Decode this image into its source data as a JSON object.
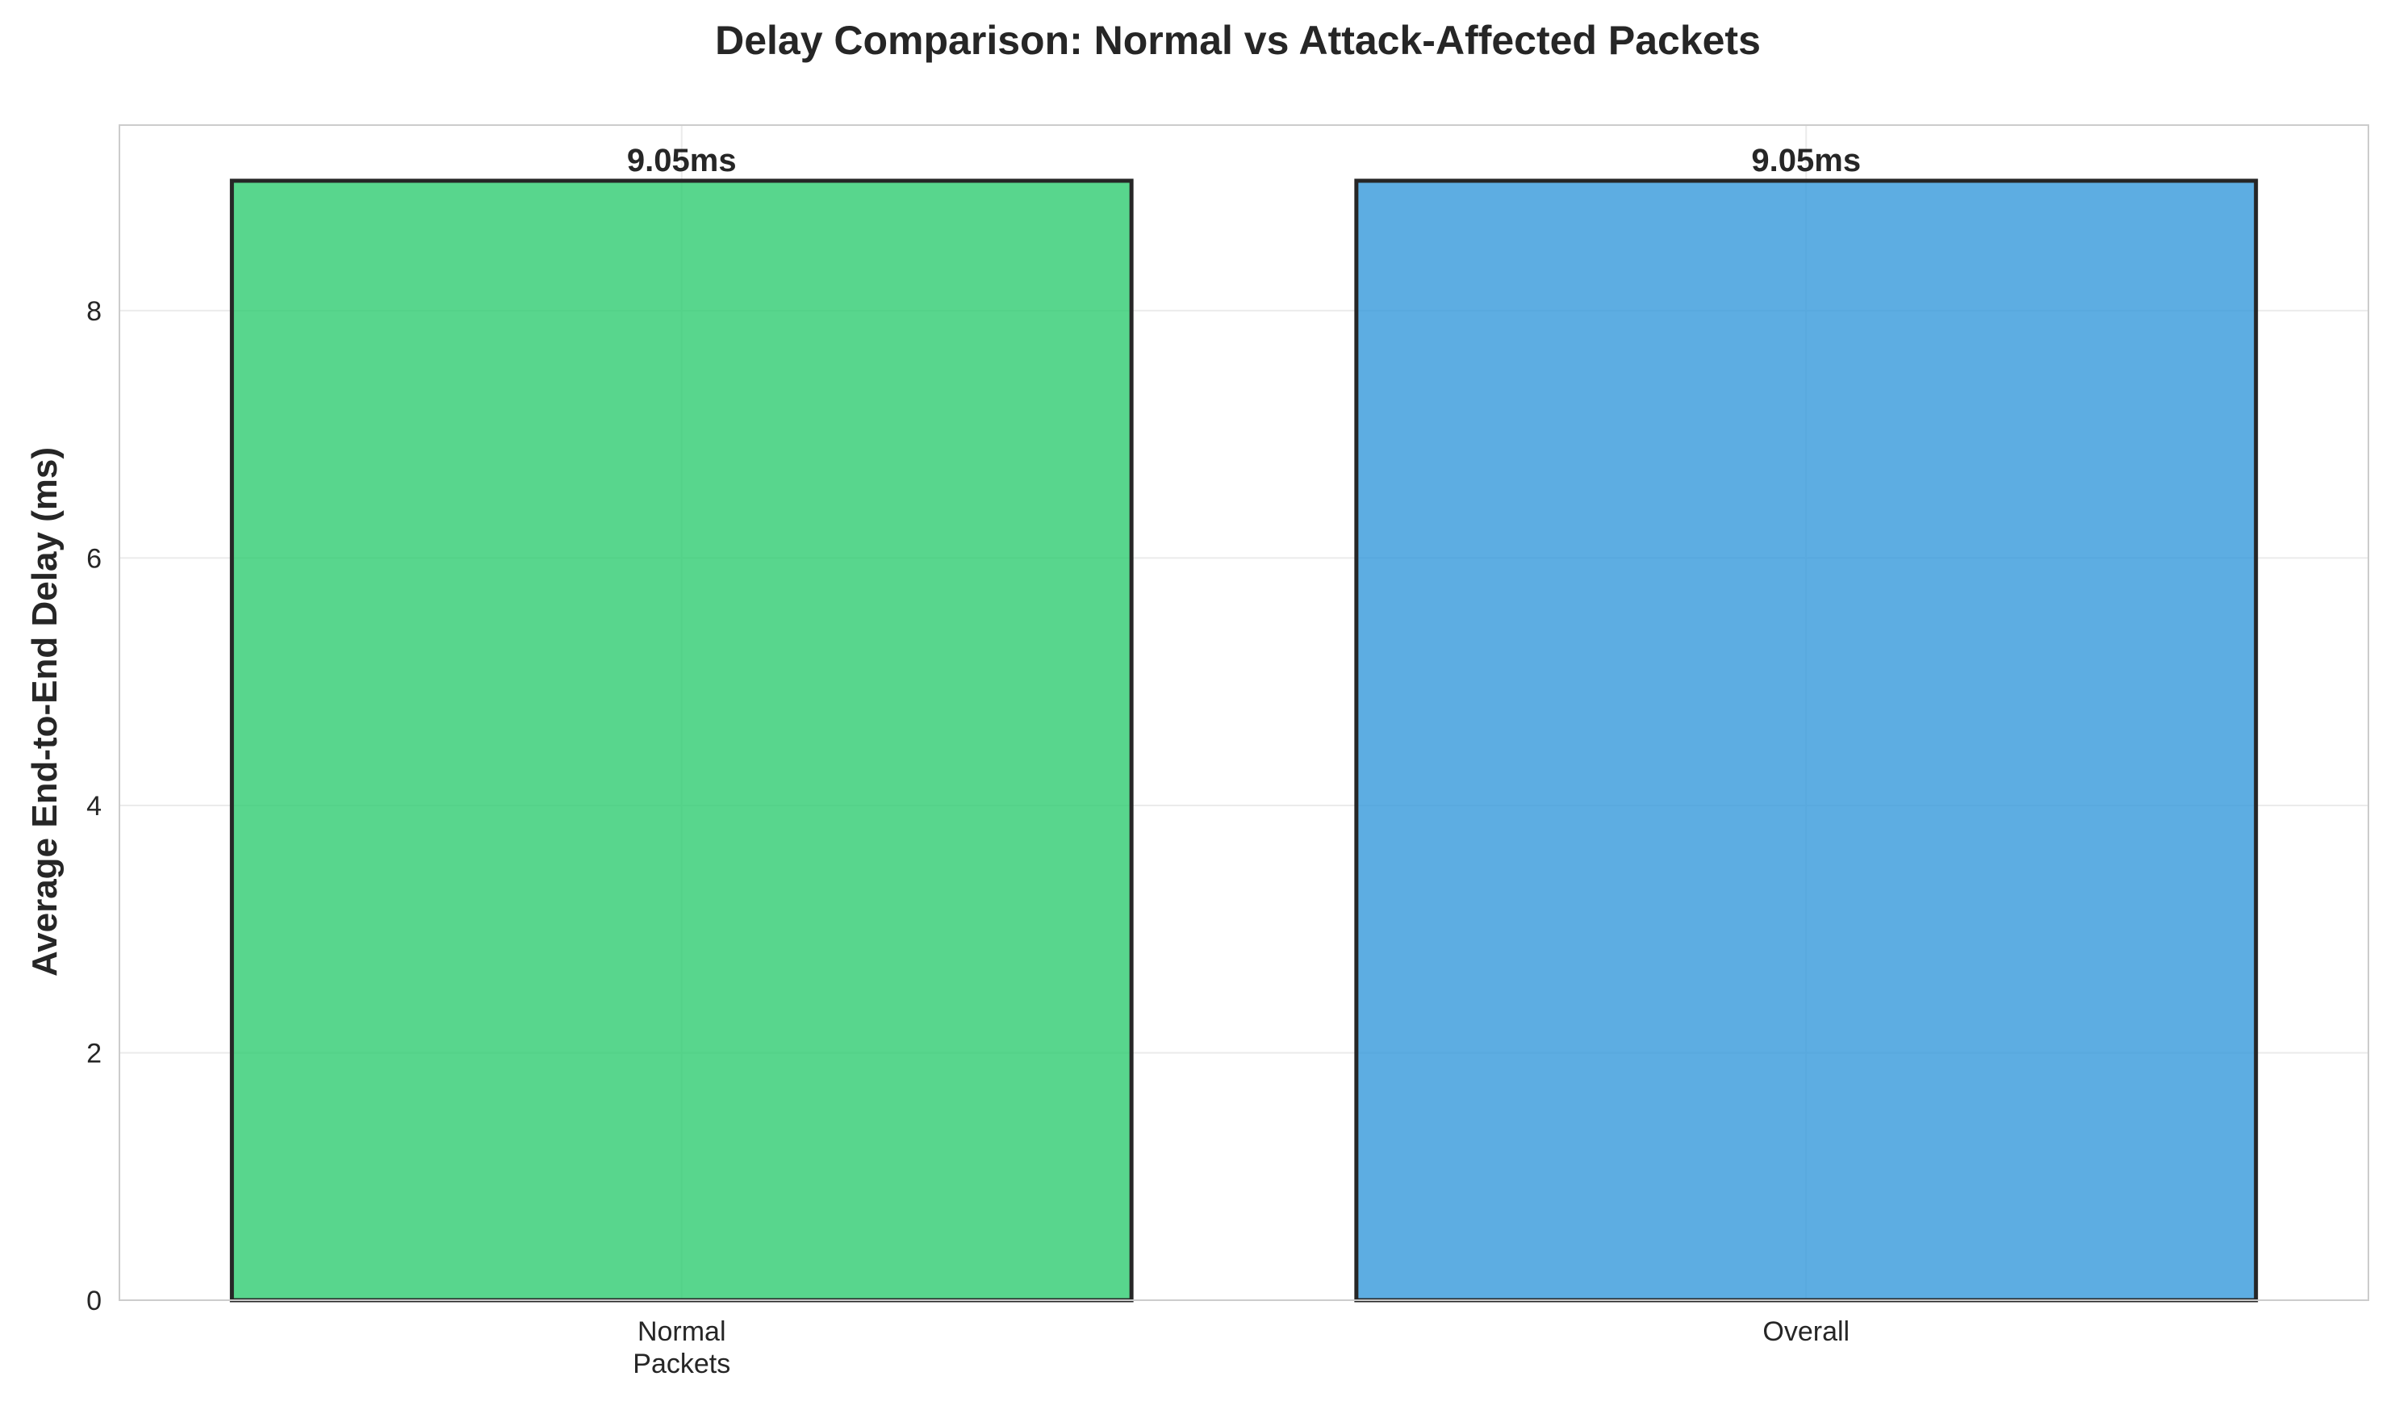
{
  "chart_data": {
    "type": "bar",
    "title": "Delay Comparison: Normal vs Attack-Affected Packets",
    "xlabel": "",
    "ylabel": "Average End-to-End Delay (ms)",
    "categories": [
      [
        "Normal",
        "Packets"
      ],
      [
        "Overall"
      ]
    ],
    "values": [
      9.05,
      9.05
    ],
    "value_labels": [
      "9.05ms",
      "9.05ms"
    ],
    "colors": [
      "#2ecc71",
      "#3498db"
    ],
    "edge_color": "#262626",
    "ylim": [
      0,
      9.5
    ],
    "yticks": [
      0,
      2,
      4,
      6,
      8
    ],
    "grid": true,
    "legend": "none"
  }
}
